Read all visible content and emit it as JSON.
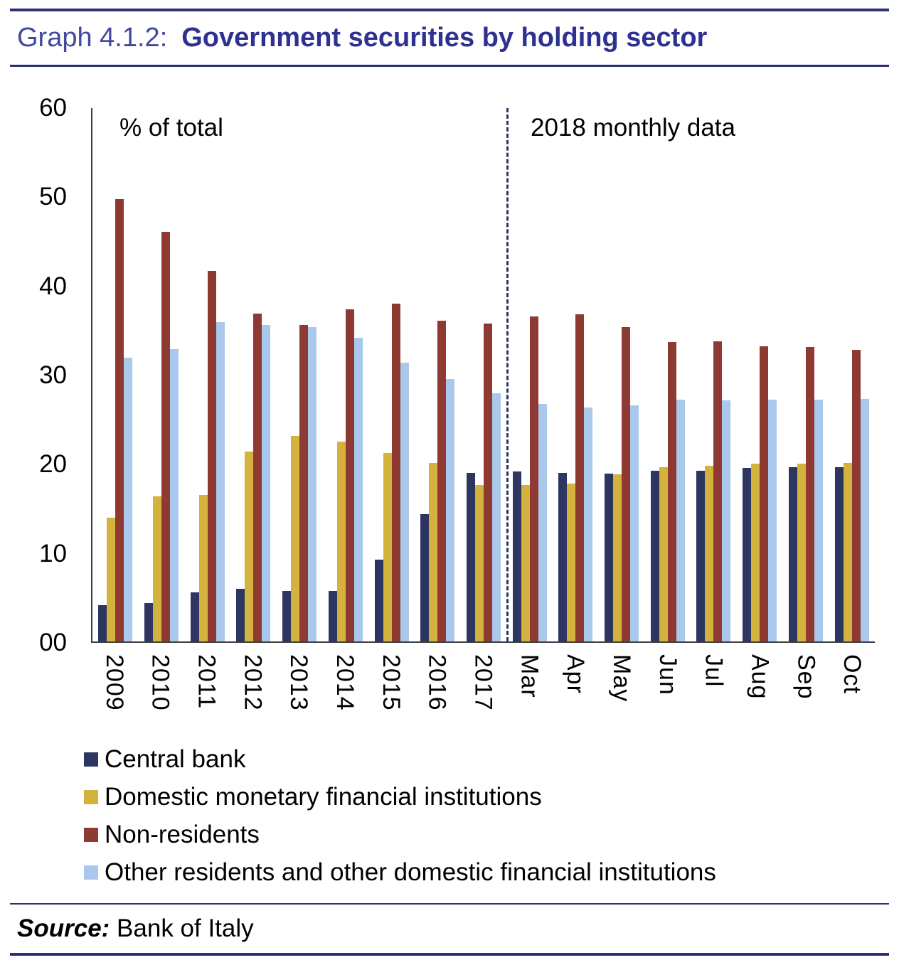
{
  "header": {
    "prefix": "Graph 4.1.2:",
    "title": "Government securities by holding sector"
  },
  "annotations": {
    "left": "% of total",
    "right": "2018 monthly data"
  },
  "source": {
    "label": "Source:",
    "text": "Bank of Italy"
  },
  "colors": {
    "rule": "#2b3175",
    "title": "#2d3192",
    "central_bank": "#2d3561",
    "domestic_mfi": "#d3b23e",
    "non_residents": "#8e3a33",
    "other_residents": "#aac8eb"
  },
  "chart_data": {
    "type": "bar",
    "title": "Government securities by holding sector",
    "xlabel": "",
    "ylabel": "% of total",
    "ylim": [
      0,
      60
    ],
    "yticks": [
      "60",
      "50",
      "40",
      "30",
      "20",
      "10",
      "00"
    ],
    "grid": false,
    "legend_position": "bottom-left",
    "categories": [
      "2009",
      "2010",
      "2011",
      "2012",
      "2013",
      "2014",
      "2015",
      "2016",
      "2017",
      "Mar",
      "Apr",
      "May",
      "Jun",
      "Jul",
      "Aug",
      "Sep",
      "Oct"
    ],
    "separator_after_index": 8,
    "series": [
      {
        "name": "Central bank",
        "color": "#2d3561",
        "values": [
          4.1,
          4.3,
          5.5,
          5.9,
          5.7,
          5.7,
          9.2,
          14.3,
          19.0,
          19.1,
          19.0,
          18.9,
          19.2,
          19.2,
          19.5,
          19.6,
          19.6
        ]
      },
      {
        "name": "Domestic monetary financial institutions",
        "color": "#d3b23e",
        "values": [
          13.9,
          16.3,
          16.5,
          21.4,
          23.1,
          22.5,
          21.2,
          20.1,
          17.6,
          17.6,
          17.8,
          18.8,
          19.6,
          19.8,
          20.0,
          20.0,
          20.1
        ]
      },
      {
        "name": "Non-residents",
        "color": "#8e3a33",
        "values": [
          49.8,
          46.1,
          41.7,
          36.9,
          35.6,
          37.4,
          38.0,
          36.1,
          35.8,
          36.6,
          36.8,
          35.4,
          33.7,
          33.8,
          33.2,
          33.1,
          32.8
        ]
      },
      {
        "name": "Other residents and other domestic financial institutions",
        "color": "#aac8eb",
        "values": [
          31.9,
          32.9,
          35.9,
          35.6,
          35.4,
          34.2,
          31.4,
          29.5,
          27.9,
          26.7,
          26.3,
          26.6,
          27.2,
          27.1,
          27.2,
          27.2,
          27.3
        ]
      }
    ]
  }
}
